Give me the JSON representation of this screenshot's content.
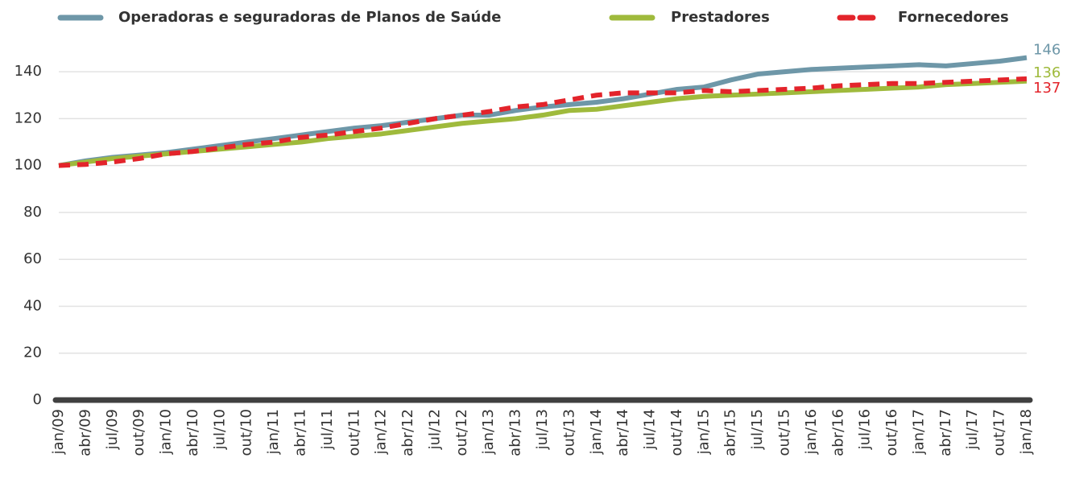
{
  "chart_data": {
    "type": "line",
    "categories": [
      "jan/09",
      "abr/09",
      "jul/09",
      "out/09",
      "jan/10",
      "abr/10",
      "jul/10",
      "out/10",
      "jan/11",
      "abr/11",
      "jul/11",
      "out/11",
      "jan/12",
      "abr/12",
      "jul/12",
      "out/12",
      "jan/13",
      "abr/13",
      "jul/13",
      "out/13",
      "jan/14",
      "abr/14",
      "jul/14",
      "out/14",
      "jan/15",
      "abr/15",
      "jul/15",
      "out/15",
      "jan/16",
      "abr/16",
      "jul/16",
      "out/16",
      "jan/17",
      "abr/17",
      "jul/17",
      "out/17",
      "jan/18"
    ],
    "series": [
      {
        "name": "Operadoras e seguradoras de Planos de Saúde",
        "color": "#6e97a8",
        "line_style": "solid",
        "values": [
          100,
          102,
          103.5,
          104.5,
          105.5,
          107,
          108.5,
          110,
          111.5,
          113,
          114.5,
          116,
          117,
          118.5,
          120,
          121.5,
          121.5,
          123.5,
          125,
          126,
          127,
          128.5,
          130.5,
          132.5,
          133.5,
          136.5,
          139,
          140,
          141,
          141.5,
          142,
          142.5,
          143,
          142.5,
          143.5,
          144.5,
          146
        ]
      },
      {
        "name": "Prestadores",
        "color": "#9fba3c",
        "line_style": "solid",
        "values": [
          100,
          101.5,
          103,
          104,
          105,
          106,
          107,
          108,
          109,
          110,
          111.5,
          112.5,
          113.5,
          115,
          116.5,
          118,
          119,
          120,
          121.5,
          123.5,
          124,
          125.5,
          127,
          128.5,
          129.5,
          130,
          130.5,
          131,
          131.5,
          132,
          132.5,
          133,
          133.5,
          134.5,
          135,
          135.5,
          136
        ]
      },
      {
        "name": "Fornecedores",
        "color": "#e3242b",
        "line_style": "dashed",
        "values": [
          100,
          100.5,
          101.5,
          103,
          105,
          106,
          107.5,
          109,
          110,
          112,
          113,
          114.5,
          116,
          118,
          120,
          121.5,
          123,
          125,
          126,
          128,
          130,
          131,
          131,
          131,
          132,
          131.5,
          132,
          132.5,
          133,
          134,
          134.5,
          135,
          135,
          135.5,
          136,
          136.5,
          137
        ]
      }
    ],
    "ylim": [
      0,
      150
    ],
    "yticks": [
      0,
      20,
      40,
      60,
      80,
      100,
      120,
      140
    ],
    "grid": true,
    "legend": "top"
  }
}
